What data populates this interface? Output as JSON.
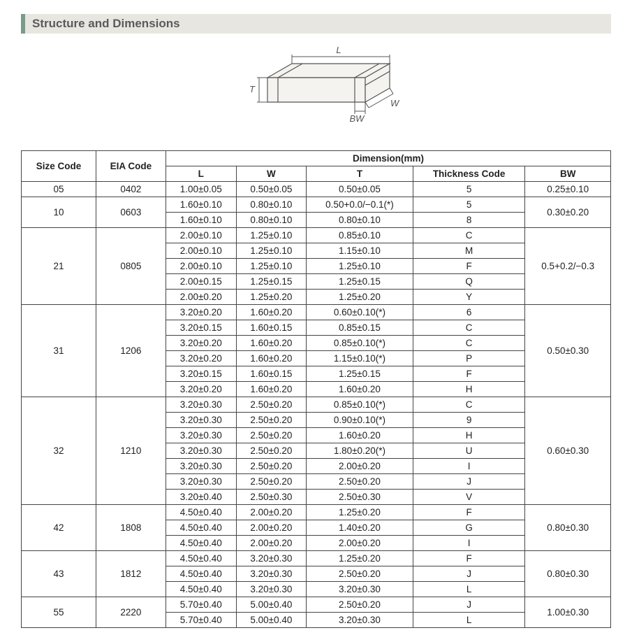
{
  "title": "Structure and Dimensions",
  "diagram": {
    "L": "L",
    "T": "T",
    "W": "W",
    "BW": "BW",
    "line_color": "#555555",
    "fill_color": "#f5f3ef"
  },
  "table": {
    "header": {
      "size_code": "Size Code",
      "eia_code": "EIA Code",
      "dimension_group": "Dimension(mm)",
      "L": "L",
      "W": "W",
      "T": "T",
      "thickness_code": "Thickness Code",
      "BW": "BW"
    },
    "groups": [
      {
        "size_code": "05",
        "eia_code": "0402",
        "bw": "0.25±0.10",
        "rows": [
          {
            "L": "1.00±0.05",
            "W": "0.50±0.05",
            "T": "0.50±0.05",
            "tc": "5"
          }
        ]
      },
      {
        "size_code": "10",
        "eia_code": "0603",
        "bw": "0.30±0.20",
        "rows": [
          {
            "L": "1.60±0.10",
            "W": "0.80±0.10",
            "T": "0.50+0.0/−0.1(*)",
            "tc": "5"
          },
          {
            "L": "1.60±0.10",
            "W": "0.80±0.10",
            "T": "0.80±0.10",
            "tc": "8"
          }
        ]
      },
      {
        "size_code": "21",
        "eia_code": "0805",
        "bw": "0.5+0.2/−0.3",
        "rows": [
          {
            "L": "2.00±0.10",
            "W": "1.25±0.10",
            "T": "0.85±0.10",
            "tc": "C"
          },
          {
            "L": "2.00±0.10",
            "W": "1.25±0.10",
            "T": "1.15±0.10",
            "tc": "M"
          },
          {
            "L": "2.00±0.10",
            "W": "1.25±0.10",
            "T": "1.25±0.10",
            "tc": "F"
          },
          {
            "L": "2.00±0.15",
            "W": "1.25±0.15",
            "T": "1.25±0.15",
            "tc": "Q"
          },
          {
            "L": "2.00±0.20",
            "W": "1.25±0.20",
            "T": "1.25±0.20",
            "tc": "Y"
          }
        ]
      },
      {
        "size_code": "31",
        "eia_code": "1206",
        "bw": "0.50±0.30",
        "rows": [
          {
            "L": "3.20±0.20",
            "W": "1.60±0.20",
            "T": "0.60±0.10(*)",
            "tc": "6"
          },
          {
            "L": "3.20±0.15",
            "W": "1.60±0.15",
            "T": "0.85±0.15",
            "tc": "C"
          },
          {
            "L": "3.20±0.20",
            "W": "1.60±0.20",
            "T": "0.85±0.10(*)",
            "tc": "C"
          },
          {
            "L": "3.20±0.20",
            "W": "1.60±0.20",
            "T": "1.15±0.10(*)",
            "tc": "P"
          },
          {
            "L": "3.20±0.15",
            "W": "1.60±0.15",
            "T": "1.25±0.15",
            "tc": "F"
          },
          {
            "L": "3.20±0.20",
            "W": "1.60±0.20",
            "T": "1.60±0.20",
            "tc": "H"
          }
        ]
      },
      {
        "size_code": "32",
        "eia_code": "1210",
        "bw": "0.60±0.30",
        "rows": [
          {
            "L": "3.20±0.30",
            "W": "2.50±0.20",
            "T": "0.85±0.10(*)",
            "tc": "C"
          },
          {
            "L": "3.20±0.30",
            "W": "2.50±0.20",
            "T": "0.90±0.10(*)",
            "tc": "9"
          },
          {
            "L": "3.20±0.30",
            "W": "2.50±0.20",
            "T": "1.60±0.20",
            "tc": "H"
          },
          {
            "L": "3.20±0.30",
            "W": "2.50±0.20",
            "T": "1.80±0.20(*)",
            "tc": "U"
          },
          {
            "L": "3.20±0.30",
            "W": "2.50±0.20",
            "T": "2.00±0.20",
            "tc": "I"
          },
          {
            "L": "3.20±0.30",
            "W": "2.50±0.20",
            "T": "2.50±0.20",
            "tc": "J"
          },
          {
            "L": "3.20±0.40",
            "W": "2.50±0.30",
            "T": "2.50±0.30",
            "tc": "V"
          }
        ]
      },
      {
        "size_code": "42",
        "eia_code": "1808",
        "bw": "0.80±0.30",
        "rows": [
          {
            "L": "4.50±0.40",
            "W": "2.00±0.20",
            "T": "1.25±0.20",
            "tc": "F"
          },
          {
            "L": "4.50±0.40",
            "W": "2.00±0.20",
            "T": "1.40±0.20",
            "tc": "G"
          },
          {
            "L": "4.50±0.40",
            "W": "2.00±0.20",
            "T": "2.00±0.20",
            "tc": "I"
          }
        ]
      },
      {
        "size_code": "43",
        "eia_code": "1812",
        "bw": "0.80±0.30",
        "rows": [
          {
            "L": "4.50±0.40",
            "W": "3.20±0.30",
            "T": "1.25±0.20",
            "tc": "F"
          },
          {
            "L": "4.50±0.40",
            "W": "3.20±0.30",
            "T": "2.50±0.20",
            "tc": "J"
          },
          {
            "L": "4.50±0.40",
            "W": "3.20±0.30",
            "T": "3.20±0.30",
            "tc": "L"
          }
        ]
      },
      {
        "size_code": "55",
        "eia_code": "2220",
        "bw": "1.00±0.30",
        "rows": [
          {
            "L": "5.70±0.40",
            "W": "5.00±0.40",
            "T": "2.50±0.20",
            "tc": "J"
          },
          {
            "L": "5.70±0.40",
            "W": "5.00±0.40",
            "T": "3.20±0.30",
            "tc": "L"
          }
        ]
      }
    ]
  }
}
